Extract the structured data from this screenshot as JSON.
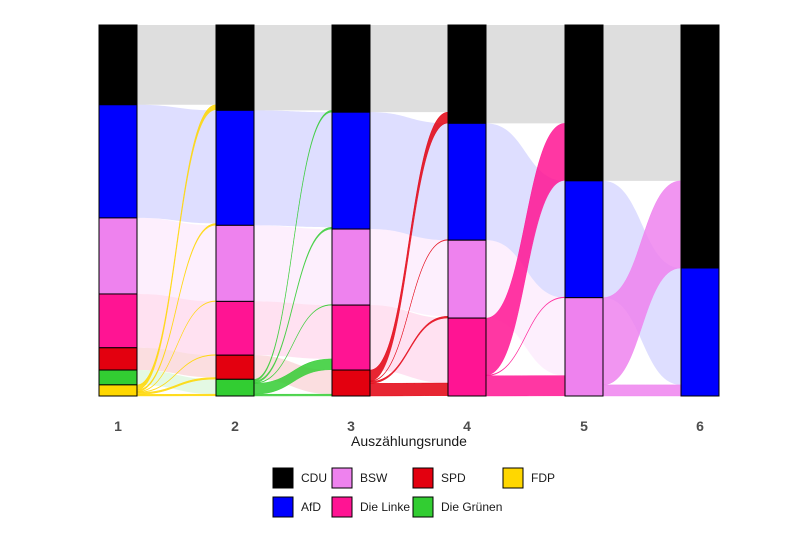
{
  "chart_data": {
    "type": "sankey",
    "xlabel": "Auszählungsrunde",
    "rounds": [
      "1",
      "2",
      "3",
      "4",
      "5",
      "6"
    ],
    "parties": [
      {
        "name": "CDU",
        "color": "#000000"
      },
      {
        "name": "AfD",
        "color": "#0000ff"
      },
      {
        "name": "BSW",
        "color": "#ee82ee"
      },
      {
        "name": "Die Linke",
        "color": "#ff1493"
      },
      {
        "name": "SPD",
        "color": "#e3000f"
      },
      {
        "name": "Die Grünen",
        "color": "#32cd32"
      },
      {
        "name": "FDP",
        "color": "#ffd700"
      }
    ],
    "shares": [
      {
        "round": "1",
        "values": {
          "CDU": 21.5,
          "AfD": 30.5,
          "BSW": 20.5,
          "Die Linke": 14.5,
          "SPD": 6.0,
          "Die Grünen": 4.0,
          "FDP": 3.0
        }
      },
      {
        "round": "2",
        "values": {
          "CDU": 23.0,
          "AfD": 31.0,
          "BSW": 20.5,
          "Die Linke": 14.5,
          "SPD": 6.5,
          "Die Grünen": 4.5
        }
      },
      {
        "round": "3",
        "values": {
          "CDU": 23.5,
          "AfD": 31.5,
          "BSW": 20.5,
          "Die Linke": 17.5,
          "SPD": 7.0
        }
      },
      {
        "round": "4",
        "values": {
          "CDU": 26.5,
          "AfD": 31.5,
          "BSW": 21.0,
          "Die Linke": 21.0
        }
      },
      {
        "round": "5",
        "values": {
          "CDU": 42.0,
          "AfD": 31.5,
          "BSW": 26.5
        }
      },
      {
        "round": "6",
        "values": {
          "CDU": 65.5,
          "AfD": 34.5
        }
      }
    ],
    "legend": {
      "placement": "bottom",
      "rows": [
        [
          "CDU",
          "BSW",
          "SPD",
          "FDP"
        ],
        [
          "AfD",
          "Die Linke",
          "Die Grünen"
        ]
      ]
    },
    "colors": {
      "cdu_flow": "#dcdcdc",
      "afd_flow": "#dcdcf8",
      "bsw_flow": "#fbe2fb",
      "linke_flow": "#ffdded",
      "grid": "none"
    }
  }
}
